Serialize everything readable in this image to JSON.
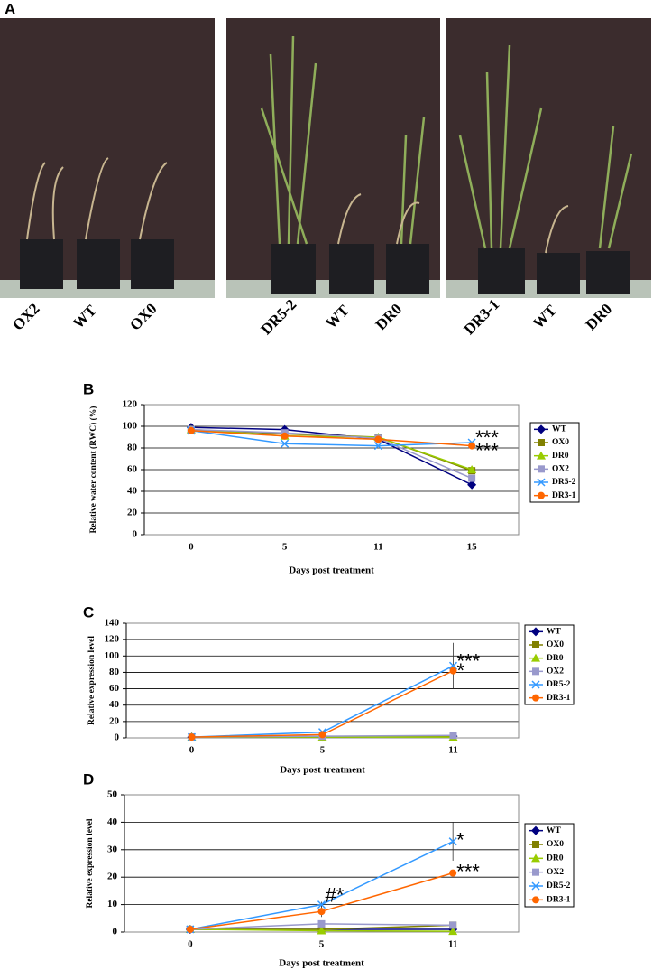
{
  "panel_a": {
    "letter": "A",
    "photos": [
      {
        "labels": [
          "OX2",
          "WT",
          "OX0"
        ]
      },
      {
        "labels": [
          "DR5-2",
          "WT",
          "DR0"
        ]
      },
      {
        "labels": [
          "DR3-1",
          "WT",
          "DR0"
        ]
      }
    ]
  },
  "chart_data": [
    {
      "type": "line",
      "panel": "B",
      "xlabel": "Days post treatment",
      "ylabel": "Relative water content (RWC) (%)",
      "categories": [
        "0",
        "5",
        "11",
        "15"
      ],
      "ylim": [
        0,
        120
      ],
      "yticks": [
        0,
        20,
        40,
        60,
        80,
        100,
        120
      ],
      "grid": true,
      "series": [
        {
          "name": "WT",
          "color": "#000080",
          "marker": "diamond",
          "values": [
            99,
            97,
            88,
            46
          ]
        },
        {
          "name": "OX0",
          "color": "#808000",
          "marker": "square",
          "values": [
            97,
            93,
            90,
            59
          ]
        },
        {
          "name": "DR0",
          "color": "#99cc00",
          "marker": "triangle",
          "values": [
            97,
            91,
            90,
            60
          ]
        },
        {
          "name": "OX2",
          "color": "#9999cc",
          "marker": "square",
          "values": [
            97,
            94,
            89,
            52
          ]
        },
        {
          "name": "DR5-2",
          "color": "#3399ff",
          "marker": "x",
          "values": [
            96,
            84,
            82,
            85
          ]
        },
        {
          "name": "DR3-1",
          "color": "#ff6600",
          "marker": "circle",
          "values": [
            96,
            91,
            88,
            82
          ]
        }
      ],
      "annotations": [
        {
          "text": "***",
          "x": "15",
          "y": 88
        },
        {
          "text": "***",
          "x": "15",
          "y": 76
        }
      ]
    },
    {
      "type": "line",
      "panel": "C",
      "xlabel": "Days post treatment",
      "ylabel": "Relative expression level",
      "categories": [
        "0",
        "5",
        "11"
      ],
      "ylim": [
        0,
        140
      ],
      "yticks": [
        0,
        20,
        40,
        60,
        80,
        100,
        120,
        140
      ],
      "grid": true,
      "series": [
        {
          "name": "WT",
          "color": "#000080",
          "marker": "diamond",
          "values": [
            1,
            1,
            2
          ]
        },
        {
          "name": "OX0",
          "color": "#808000",
          "marker": "square",
          "values": [
            1,
            1,
            2
          ]
        },
        {
          "name": "DR0",
          "color": "#99cc00",
          "marker": "triangle",
          "values": [
            1,
            1,
            1
          ]
        },
        {
          "name": "OX2",
          "color": "#9999cc",
          "marker": "square",
          "values": [
            1,
            2,
            3
          ]
        },
        {
          "name": "DR5-2",
          "color": "#3399ff",
          "marker": "x",
          "values": [
            1,
            7,
            88
          ],
          "errors": [
            0,
            1,
            28
          ]
        },
        {
          "name": "DR3-1",
          "color": "#ff6600",
          "marker": "circle",
          "values": [
            1,
            4,
            82
          ]
        }
      ],
      "annotations": [
        {
          "text": "***",
          "x": "11",
          "y": 92
        },
        {
          "text": "*",
          "x": "11",
          "y": 80
        }
      ]
    },
    {
      "type": "line",
      "panel": "D",
      "xlabel": "Days post treatment",
      "ylabel": "Relative expression level",
      "categories": [
        "0",
        "5",
        "11"
      ],
      "ylim": [
        0,
        50
      ],
      "yticks": [
        0,
        10,
        20,
        30,
        40,
        50
      ],
      "grid": true,
      "series": [
        {
          "name": "WT",
          "color": "#000080",
          "marker": "diamond",
          "values": [
            1,
            1,
            1
          ]
        },
        {
          "name": "OX0",
          "color": "#808000",
          "marker": "square",
          "values": [
            1,
            1,
            2.5
          ]
        },
        {
          "name": "DR0",
          "color": "#99cc00",
          "marker": "triangle",
          "values": [
            1,
            0.5,
            0.3
          ]
        },
        {
          "name": "OX2",
          "color": "#9999cc",
          "marker": "square",
          "values": [
            1,
            3,
            2.5
          ]
        },
        {
          "name": "DR5-2",
          "color": "#3399ff",
          "marker": "x",
          "values": [
            1,
            10,
            33
          ],
          "errors": [
            0,
            1,
            7
          ]
        },
        {
          "name": "DR3-1",
          "color": "#ff6600",
          "marker": "circle",
          "values": [
            1,
            7.5,
            21.5
          ],
          "errors": [
            0,
            2,
            1
          ]
        }
      ],
      "annotations": [
        {
          "text": "*",
          "x": "11",
          "y": 33
        },
        {
          "text": "***",
          "x": "11",
          "y": 21.5
        },
        {
          "text": "#*",
          "x": "5",
          "y": 13
        }
      ]
    }
  ]
}
